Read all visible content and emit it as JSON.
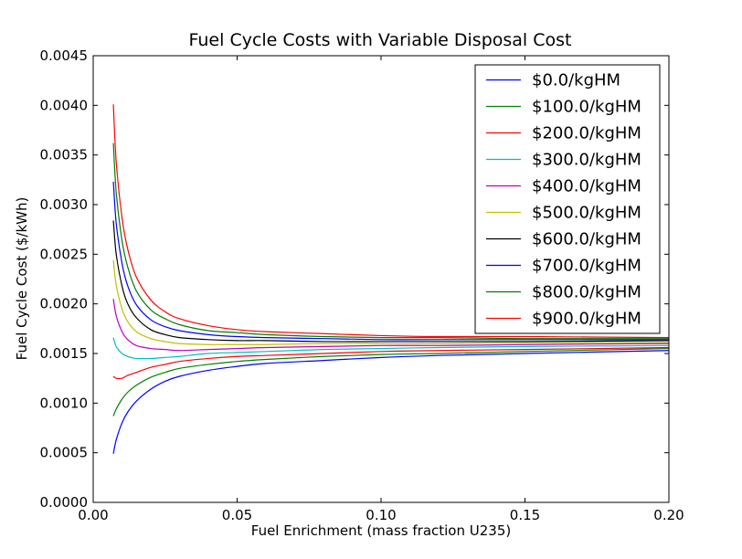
{
  "chart_data": {
    "type": "line",
    "title": "Fuel Cycle Costs with Variable Disposal Cost",
    "xlabel": "Fuel Enrichment (mass fraction U235)",
    "ylabel": "Fuel Cycle Cost ($/kWh)",
    "xlim": [
      0.0,
      0.2
    ],
    "ylim": [
      0.0,
      0.0045
    ],
    "xticks": [
      "0.00",
      "0.05",
      "0.10",
      "0.15",
      "0.20"
    ],
    "yticks": [
      "0.0000",
      "0.0005",
      "0.0010",
      "0.0015",
      "0.0020",
      "0.0025",
      "0.0030",
      "0.0035",
      "0.0040",
      "0.0045"
    ],
    "grid": false,
    "legend_position": "top-right",
    "x": [
      0.007,
      0.008,
      0.01,
      0.012,
      0.015,
      0.02,
      0.025,
      0.03,
      0.04,
      0.05,
      0.06,
      0.08,
      0.1,
      0.12,
      0.15,
      0.2
    ],
    "series": [
      {
        "name": "$0.0/kgHM",
        "color": "#0000ff",
        "values": [
          0.00049,
          0.00063,
          0.0008,
          0.00091,
          0.00102,
          0.00114,
          0.00122,
          0.00127,
          0.00133,
          0.00137,
          0.0014,
          0.00143,
          0.00146,
          0.00148,
          0.0015,
          0.00153
        ]
      },
      {
        "name": "$100.0/kgHM",
        "color": "#008000",
        "values": [
          0.00087,
          0.00094,
          0.00104,
          0.00111,
          0.00118,
          0.00126,
          0.00131,
          0.00135,
          0.00139,
          0.00142,
          0.00144,
          0.00147,
          0.00149,
          0.0015,
          0.00152,
          0.00155
        ]
      },
      {
        "name": "$200.0/kgHM",
        "color": "#ff0000",
        "values": [
          0.00127,
          0.00125,
          0.00125,
          0.00128,
          0.00131,
          0.00136,
          0.00139,
          0.00142,
          0.00145,
          0.00147,
          0.00148,
          0.0015,
          0.00152,
          0.00153,
          0.00154,
          0.00156
        ]
      },
      {
        "name": "$300.0/kgHM",
        "color": "#00bfbf",
        "values": [
          0.00166,
          0.00157,
          0.0015,
          0.00147,
          0.00145,
          0.00145,
          0.00146,
          0.00147,
          0.0015,
          0.00151,
          0.00152,
          0.00154,
          0.00155,
          0.00156,
          0.00157,
          0.00158
        ]
      },
      {
        "name": "$400.0/kgHM",
        "color": "#bf00bf",
        "values": [
          0.00205,
          0.00188,
          0.00172,
          0.00164,
          0.00158,
          0.00155,
          0.00154,
          0.00153,
          0.00154,
          0.00155,
          0.00156,
          0.00157,
          0.00158,
          0.00158,
          0.00159,
          0.0016
        ]
      },
      {
        "name": "$500.0/kgHM",
        "color": "#bfbf00",
        "values": [
          0.00244,
          0.00219,
          0.00195,
          0.00182,
          0.00172,
          0.00165,
          0.00162,
          0.0016,
          0.00159,
          0.00159,
          0.00159,
          0.0016,
          0.0016,
          0.0016,
          0.00161,
          0.00161
        ]
      },
      {
        "name": "$600.0/kgHM",
        "color": "#000000",
        "values": [
          0.00284,
          0.0025,
          0.00218,
          0.002,
          0.00186,
          0.00174,
          0.00169,
          0.00166,
          0.00164,
          0.00163,
          0.00163,
          0.00162,
          0.00162,
          0.00162,
          0.00162,
          0.00163
        ]
      },
      {
        "name": "$700.0/kgHM",
        "color": "#0000ff",
        "values": [
          0.00323,
          0.00281,
          0.00241,
          0.00218,
          0.00199,
          0.00184,
          0.00177,
          0.00173,
          0.00169,
          0.00167,
          0.00166,
          0.00165,
          0.00164,
          0.00164,
          0.00164,
          0.00164
        ]
      },
      {
        "name": "$800.0/kgHM",
        "color": "#008000",
        "values": [
          0.00362,
          0.00312,
          0.00264,
          0.00237,
          0.00213,
          0.00194,
          0.00185,
          0.00179,
          0.00173,
          0.00171,
          0.00169,
          0.00167,
          0.00166,
          0.00166,
          0.00165,
          0.00165
        ]
      },
      {
        "name": "$900.0/kgHM",
        "color": "#ff0000",
        "values": [
          0.00401,
          0.00343,
          0.00287,
          0.00255,
          0.00227,
          0.00204,
          0.00192,
          0.00185,
          0.00178,
          0.00174,
          0.00172,
          0.0017,
          0.00168,
          0.00167,
          0.00167,
          0.00166
        ]
      }
    ]
  }
}
